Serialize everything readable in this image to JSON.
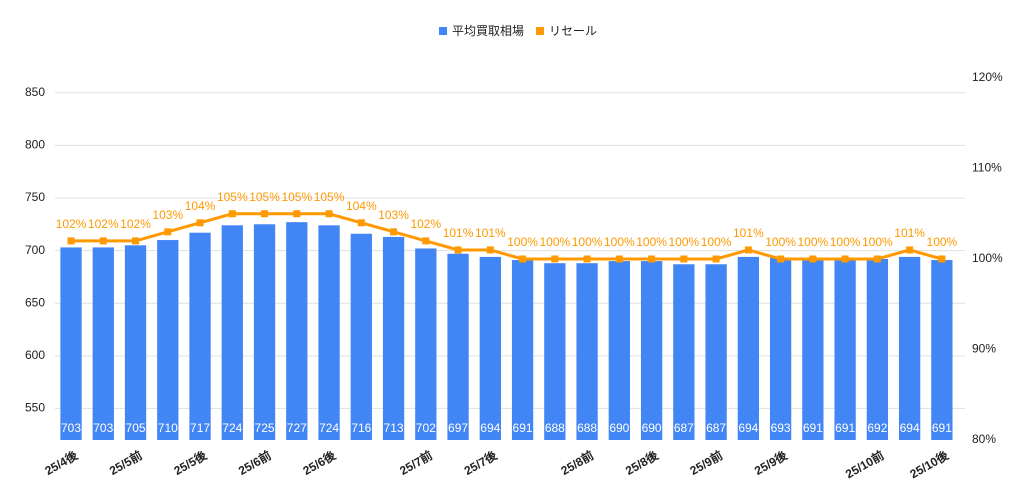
{
  "chart_data": {
    "type": "bar",
    "categories": [
      "25/4後",
      null,
      "25/5前",
      null,
      "25/5後",
      null,
      "25/6前",
      null,
      "25/6後",
      null,
      null,
      "25/7前",
      null,
      "25/7後",
      null,
      null,
      "25/8前",
      null,
      "25/8後",
      null,
      "25/9前",
      null,
      "25/9後",
      null,
      null,
      "25/10前",
      null,
      "25/10後"
    ],
    "series": [
      {
        "name": "平均買取相場",
        "color": "#4285f4",
        "values": [
          703,
          703,
          705,
          710,
          717,
          724,
          725,
          727,
          724,
          716,
          713,
          702,
          697,
          694,
          691,
          688,
          688,
          690,
          690,
          687,
          687,
          694,
          693,
          691,
          691,
          692,
          694,
          691
        ]
      },
      {
        "name": "リセール",
        "color": "#ff9900",
        "type": "line",
        "axis": "y2",
        "values": [
          102,
          102,
          102,
          103,
          104,
          105,
          105,
          105,
          105,
          104,
          103,
          102,
          101,
          101,
          100,
          100,
          100,
          100,
          100,
          100,
          100,
          101,
          100,
          100,
          100,
          100,
          101,
          100
        ],
        "value_labels": [
          "102%",
          "102%",
          "102%",
          "103%",
          "104%",
          "105%",
          "105%",
          "105%",
          "105%",
          "104%",
          "103%",
          "102%",
          "101%",
          "101%",
          "100%",
          "100%",
          "100%",
          "100%",
          "100%",
          "100%",
          "100%",
          "101%",
          "100%",
          "100%",
          "100%",
          "100%",
          "101%",
          "100%"
        ]
      }
    ],
    "ylim": [
      520,
      864
    ],
    "yticks": [
      550,
      600,
      650,
      700,
      750,
      800,
      850
    ],
    "y2lim": [
      80,
      120
    ],
    "y2ticks": [
      {
        "value": 80,
        "label": "80%"
      },
      {
        "value": 90,
        "label": "90%"
      },
      {
        "value": 100,
        "label": "100%"
      },
      {
        "value": 110,
        "label": "110%"
      },
      {
        "value": 120,
        "label": "120%"
      }
    ],
    "grid": true,
    "legend": "top"
  }
}
